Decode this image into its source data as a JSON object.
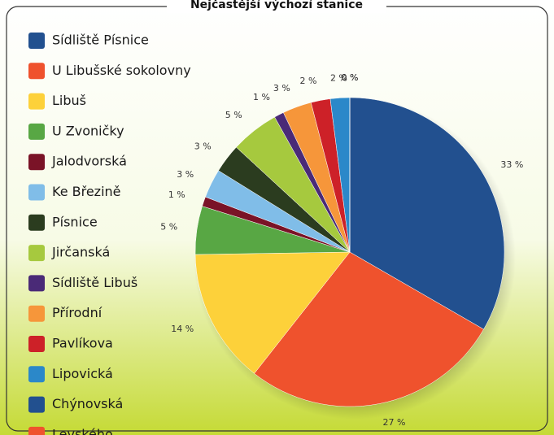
{
  "chart_data": {
    "type": "pie",
    "title": "Nejčastější výchozí stanice",
    "categories": [
      "Sídliště Písnice",
      "U Libušské sokolovny",
      "Libuš",
      "U Zvoničky",
      "Jalodvorská",
      "Ke Březině",
      "Písnice",
      "Jirčanská",
      "Sídliště Libuš",
      "Přírodní",
      "Pavlíkova",
      "Lipovická",
      "Chýnovská",
      "Levského"
    ],
    "values": [
      33,
      27,
      14,
      5,
      1,
      3,
      3,
      5,
      1,
      3,
      2,
      2,
      0,
      0
    ],
    "value_labels": [
      "33 %",
      "27 %",
      "14 %",
      "5 %",
      "1 %",
      "3 %",
      "3 %",
      "5 %",
      "1 %",
      "3 %",
      "2 %",
      "2 %",
      "0 %",
      "0 %"
    ],
    "colors": [
      "#22508f",
      "#ef522d",
      "#fdd13a",
      "#58a744",
      "#7a1327",
      "#80bde8",
      "#2b3c1f",
      "#a6c93e",
      "#4a2a77",
      "#f6963a",
      "#cd2128",
      "#2b88c9",
      "#22508f",
      "#ef522d"
    ]
  }
}
